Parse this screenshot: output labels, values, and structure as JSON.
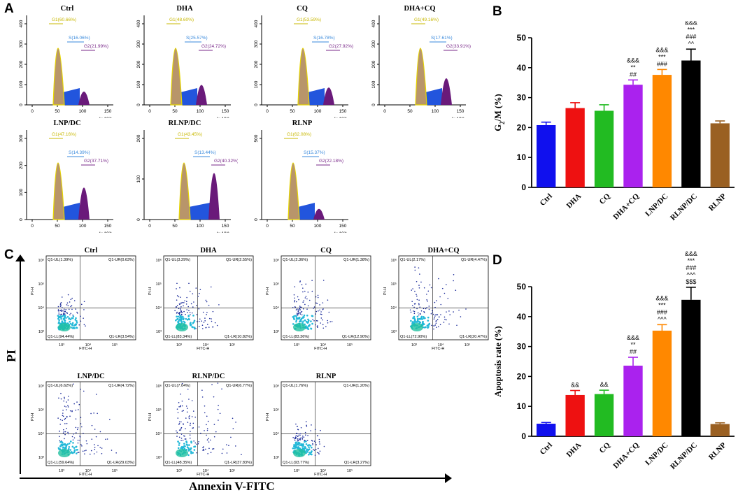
{
  "panels": {
    "a": "A",
    "b": "B",
    "c": "C",
    "d": "D"
  },
  "cell_cycle": {
    "x_ticks": [
      "0",
      "50",
      "100",
      "150"
    ],
    "x_unit": "(x 10³)",
    "plots": [
      {
        "title": "Ctrl",
        "y_ticks": [
          "0",
          "100",
          "200",
          "300",
          "400"
        ],
        "g1": "G1(60.66%)",
        "s": "S(16.06%)",
        "g2": "G2(21.99%)"
      },
      {
        "title": "DHA",
        "y_ticks": [
          "0",
          "100",
          "200",
          "300",
          "400"
        ],
        "g1": "G1(48.60%)",
        "s": "S(25.57%)",
        "g2": "G2(24.72%)"
      },
      {
        "title": "CQ",
        "y_ticks": [
          "0",
          "100",
          "200",
          "300",
          "400"
        ],
        "g1": "G1(53.59%)",
        "s": "S(16.78%)",
        "g2": "G2(27.92%)"
      },
      {
        "title": "DHA+CQ",
        "y_ticks": [
          "0",
          "100",
          "200",
          "300",
          "400"
        ],
        "g1": "G1(49.16%)",
        "s": "S(17.61%)",
        "g2": "G2(33.91%)"
      },
      {
        "title": "LNP/DC",
        "y_ticks": [
          "0",
          "100",
          "200",
          "300"
        ],
        "g1": "G1(47.16%)",
        "s": "S(14.39%)",
        "g2": "G2(37.71%)"
      },
      {
        "title": "RLNP/DC",
        "y_ticks": [
          "0",
          "100",
          "200"
        ],
        "g1": "G1(43.45%)",
        "s": "S(13.44%)",
        "g2": "G2(40.32%)"
      },
      {
        "title": "RLNP",
        "y_ticks": [
          "0",
          "500"
        ],
        "g1": "G1(62.08%)",
        "s": "S(15.37%)",
        "g2": "G2(22.18%)"
      }
    ]
  },
  "apoptosis_flow": {
    "x_label": "FITC-H",
    "y_label": "PI-H",
    "x_ticks": [
      "10³",
      "10⁴",
      "10⁵"
    ],
    "y_ticks": [
      "10⁶",
      "10⁵",
      "10⁴",
      "10³"
    ],
    "axis_y": "PI",
    "axis_x": "Annexin V-FITC",
    "plots": [
      {
        "title": "Ctrl",
        "ul": "Q1-UL(1.39%)",
        "ur": "Q1-UR(0.63%)",
        "ll": "Q1-LL(94.44%)",
        "lr": "Q1-LR(3.54%)"
      },
      {
        "title": "DHA",
        "ul": "Q1-UL(3.29%)",
        "ur": "Q1-UR(2.55%)",
        "ll": "Q1-LL(83.34%)",
        "lr": "Q1-LR(10.82%)"
      },
      {
        "title": "CQ",
        "ul": "Q1-UL(2.36%)",
        "ur": "Q1-UR(1.38%)",
        "ll": "Q1-LL(83.36%)",
        "lr": "Q1-LR(12.90%)"
      },
      {
        "title": "DHA+CQ",
        "ul": "Q1-UL(2.17%)",
        "ur": "Q1-UR(4.47%)",
        "ll": "Q1-LL(72.90%)",
        "lr": "Q1-LR(20.47%)"
      },
      {
        "title": "LNP/DC",
        "ul": "Q1-UL(6.62%)",
        "ur": "Q1-UR(4.72%)",
        "ll": "Q1-LL(59.64%)",
        "lr": "Q1-LR(29.03%)"
      },
      {
        "title": "RLNP/DC",
        "ul": "Q1-UL(7.04%)",
        "ur": "Q1-UR(6.77%)",
        "ll": "Q1-LL(48.35%)",
        "lr": "Q1-LR(37.83%)"
      },
      {
        "title": "RLNP",
        "ul": "Q1-UL(1.76%)",
        "ur": "Q1-UR(1.20%)",
        "ll": "Q1-LL(93.77%)",
        "lr": "Q1-LR(3.27%)"
      }
    ]
  },
  "chart_data": [
    {
      "type": "bar",
      "panel": "B",
      "ylabel_main": "G",
      "ylabel_sub": "2",
      "ylabel_rest": "/M (%)",
      "ylim": [
        0,
        50
      ],
      "yticks": [
        "0",
        "10",
        "20",
        "30",
        "40",
        "50"
      ],
      "categories": [
        "Ctrl",
        "DHA",
        "CQ",
        "DHA+CQ",
        "LNP/DC",
        "RLNP/DC",
        "RLNP"
      ],
      "values": [
        20.8,
        26.5,
        25.6,
        34.3,
        37.6,
        42.4,
        21.4
      ],
      "errors": [
        1.0,
        1.8,
        2.0,
        1.6,
        1.8,
        3.8,
        0.8
      ],
      "colors": [
        "#1010ee",
        "#ee1111",
        "#22bb22",
        "#aa22ee",
        "#ff8800",
        "#000000",
        "#9a6022"
      ],
      "annotations": [
        [],
        [],
        [],
        [
          "&&&",
          "**",
          "##"
        ],
        [
          "&&&",
          "***",
          "###"
        ],
        [
          "&&&",
          "***",
          "###",
          "^^"
        ],
        []
      ]
    },
    {
      "type": "bar",
      "panel": "D",
      "ylabel_main": "Apoptosis rate (%)",
      "ylim": [
        0,
        50
      ],
      "yticks": [
        "0",
        "10",
        "20",
        "30",
        "40",
        "50"
      ],
      "categories": [
        "Ctrl",
        "DHA",
        "CQ",
        "DHA+CQ",
        "LNP/DC",
        "RLNP/DC",
        "RLNP"
      ],
      "values": [
        4.2,
        13.8,
        14.1,
        23.6,
        35.3,
        45.6,
        4.1
      ],
      "errors": [
        0.4,
        1.5,
        1.3,
        2.8,
        2.0,
        4.2,
        0.4
      ],
      "colors": [
        "#1010ee",
        "#ee1111",
        "#22bb22",
        "#aa22ee",
        "#ff8800",
        "#000000",
        "#9a6022"
      ],
      "annotations": [
        [],
        [
          "&&"
        ],
        [
          "&&"
        ],
        [
          "&&&",
          "**",
          "##"
        ],
        [
          "&&&",
          "***",
          "###",
          "^^^"
        ],
        [
          "&&&",
          "***",
          "###",
          "^^^",
          "$$$"
        ],
        []
      ]
    }
  ]
}
